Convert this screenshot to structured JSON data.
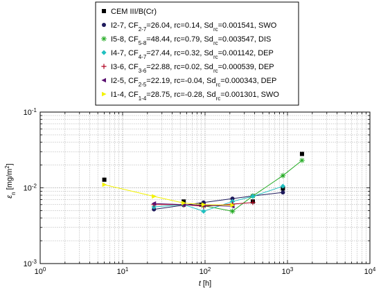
{
  "chart_data": {
    "type": "line",
    "x_scale": "log",
    "y_scale": "log",
    "xlim": [
      1,
      10000
    ],
    "ylim": [
      0.001,
      0.1
    ],
    "grid": true,
    "legend_position": "top-center",
    "xlabel": {
      "main": "t",
      "unit": " [h]"
    },
    "ylabel": {
      "main": "ε",
      "sub": "n",
      "unit": " [mg/m",
      "sup": "2",
      "end": "]"
    },
    "x_ticks": [
      {
        "value": 1,
        "base": "10",
        "exp": "0"
      },
      {
        "value": 10,
        "base": "10",
        "exp": "1"
      },
      {
        "value": 100,
        "base": "10",
        "exp": "2"
      },
      {
        "value": 1000,
        "base": "10",
        "exp": "3"
      },
      {
        "value": 10000,
        "base": "10",
        "exp": "4"
      }
    ],
    "y_ticks": [
      {
        "value": 0.001,
        "base": "10",
        "exp": "-3"
      },
      {
        "value": 0.01,
        "base": "10",
        "exp": "-2"
      },
      {
        "value": 0.1,
        "base": "10",
        "exp": "-1"
      }
    ],
    "series": [
      {
        "key": "cem",
        "label": [
          {
            "t": "CEM III/B(Cr)"
          }
        ],
        "color": "#000000",
        "marker": "square",
        "line": false,
        "x": [
          6,
          55,
          90,
          380,
          880,
          1500
        ],
        "y": [
          0.0128,
          0.0066,
          0.006,
          0.0066,
          0.0098,
          0.028
        ]
      },
      {
        "key": "i2-7",
        "label": [
          {
            "t": "I2-7, CF"
          },
          {
            "t": "2-7",
            "s": "sub"
          },
          {
            "t": "=26.04, rc=0.14, Sd"
          },
          {
            "t": "rc",
            "s": "sub"
          },
          {
            "t": "=0.001541, SWO"
          }
        ],
        "color": "#1e1a5c",
        "marker": "circle",
        "line": true,
        "x": [
          24,
          55,
          96,
          215,
          380,
          880
        ],
        "y": [
          0.0052,
          0.0059,
          0.0064,
          0.0072,
          0.0078,
          0.0087
        ]
      },
      {
        "key": "i5-8",
        "label": [
          {
            "t": "I5-8, CF"
          },
          {
            "t": "5-8",
            "s": "sub"
          },
          {
            "t": "=48.44, rc=0.79, Sd"
          },
          {
            "t": "rc",
            "s": "sub"
          },
          {
            "t": "=0.003547, DIS"
          }
        ],
        "color": "#22aa22",
        "marker": "star",
        "line": true,
        "x": [
          96,
          215,
          380,
          880,
          1500
        ],
        "y": [
          0.0058,
          0.0049,
          0.0078,
          0.0145,
          0.023
        ]
      },
      {
        "key": "i4-7",
        "label": [
          {
            "t": "I4-7, CF"
          },
          {
            "t": "4-7",
            "s": "sub"
          },
          {
            "t": "=27.44, rc=0.32, Sd"
          },
          {
            "t": "rc",
            "s": "sub"
          },
          {
            "t": "=0.001142, DEP"
          }
        ],
        "color": "#20c0c0",
        "marker": "diamond",
        "line": true,
        "x": [
          24,
          55,
          96,
          215,
          380,
          880
        ],
        "y": [
          0.0056,
          0.006,
          0.0049,
          0.0066,
          0.0077,
          0.0105
        ]
      },
      {
        "key": "i3-6",
        "label": [
          {
            "t": "I3-6, CF"
          },
          {
            "t": "3-6",
            "s": "sub"
          },
          {
            "t": "=22.88, rc=0.02, Sd"
          },
          {
            "t": "rc",
            "s": "sub"
          },
          {
            "t": "=0.000539, DEP"
          }
        ],
        "color": "#b00020",
        "marker": "plus",
        "line": true,
        "x": [
          24,
          55,
          96,
          215,
          380
        ],
        "y": [
          0.006,
          0.006,
          0.0057,
          0.0061,
          0.0064
        ]
      },
      {
        "key": "i2-5",
        "label": [
          {
            "t": "I2-5, CF"
          },
          {
            "t": "2-5",
            "s": "sub"
          },
          {
            "t": "=22.19, rc=-0.04, Sd"
          },
          {
            "t": "rc",
            "s": "sub"
          },
          {
            "t": "=0.000343, DEP"
          }
        ],
        "color": "#5a1070",
        "marker": "triangle-left",
        "line": true,
        "x": [
          24,
          55,
          96,
          215
        ],
        "y": [
          0.0062,
          0.006,
          0.0059,
          0.0057
        ]
      },
      {
        "key": "i1-4",
        "label": [
          {
            "t": "I1-4, CF"
          },
          {
            "t": "1-4",
            "s": "sub"
          },
          {
            "t": "=28.75, rc=-0.28, Sd"
          },
          {
            "t": "rc",
            "s": "sub"
          },
          {
            "t": "=0.001301, SWO"
          }
        ],
        "color": "#f2f200",
        "marker": "triangle-right",
        "line": true,
        "x": [
          6,
          24,
          55,
          96,
          215
        ],
        "y": [
          0.011,
          0.0077,
          0.0063,
          0.006,
          0.0059
        ]
      }
    ]
  }
}
